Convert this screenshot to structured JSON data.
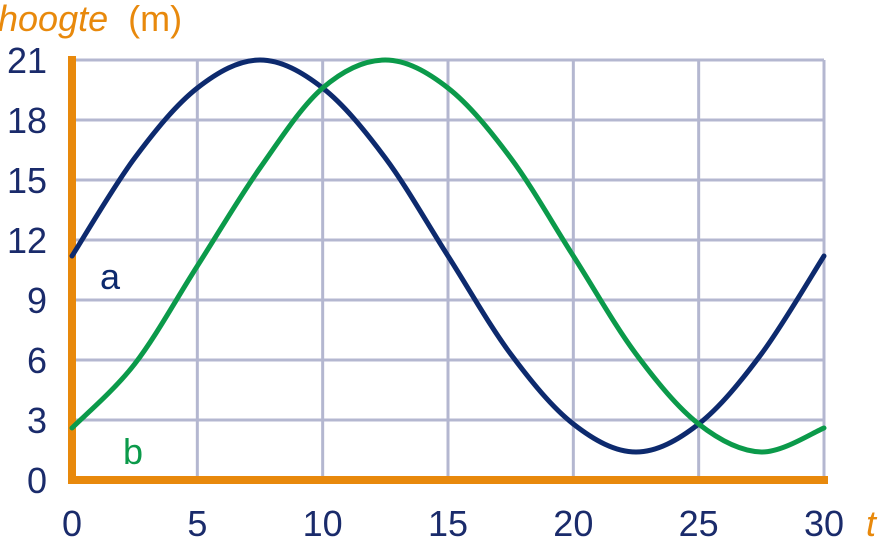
{
  "chart_data": {
    "type": "line",
    "title": "",
    "ylabel": {
      "variable": "hoogte",
      "unit": "(m)"
    },
    "xlabel": "t",
    "xlim": [
      0,
      30
    ],
    "ylim": [
      0,
      21
    ],
    "xticks": [
      "0",
      "5",
      "10",
      "15",
      "20",
      "25",
      "30"
    ],
    "yticks": [
      "0",
      "3",
      "6",
      "9",
      "12",
      "15",
      "18",
      "21"
    ],
    "grid": true,
    "colors": {
      "axis": "#e8890c",
      "grid": "#b4b7d0",
      "ticks": "#1a2b6b"
    },
    "series": [
      {
        "name": "a",
        "color": "#0d2a6e",
        "x": [
          0,
          2.5,
          5,
          7.5,
          10,
          12.5,
          15,
          17.5,
          20,
          22.5,
          25,
          27.5,
          30
        ],
        "y": [
          11.2,
          16.1,
          19.6,
          21.0,
          19.6,
          16.1,
          11.2,
          6.3,
          2.8,
          1.4,
          2.8,
          6.3,
          11.2
        ]
      },
      {
        "name": "b",
        "color": "#0b9a4a",
        "x": [
          0,
          2.5,
          5,
          7.5,
          10,
          12.5,
          15,
          17.5,
          20,
          22.5,
          25,
          27.5,
          30
        ],
        "y": [
          2.6,
          5.8,
          10.7,
          15.6,
          19.6,
          21.0,
          19.6,
          16.1,
          11.2,
          6.3,
          2.8,
          1.4,
          2.6
        ]
      }
    ]
  }
}
